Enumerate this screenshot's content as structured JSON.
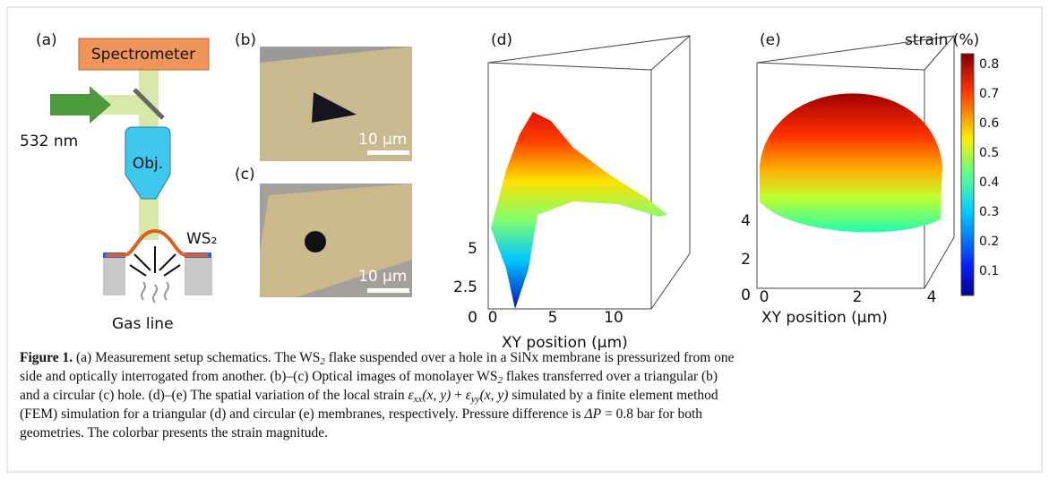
{
  "panels": {
    "a": {
      "label": "(a)",
      "spectrometer": "Spectrometer",
      "laser": "532 nm",
      "objective": "Obj.",
      "flake": "WS₂",
      "gas": "Gas line"
    },
    "b": {
      "label": "(b)",
      "scale_bar": "10 μm"
    },
    "c": {
      "label": "(c)",
      "scale_bar": "10 μm"
    },
    "d": {
      "label": "(d)",
      "z_ticks": [
        "5",
        "2.5",
        "0"
      ],
      "x_ticks": [
        "0",
        "5",
        "10"
      ],
      "x_label": "XY position (μm)"
    },
    "e": {
      "label": "(e)",
      "z_ticks": [
        "4",
        "2",
        "0"
      ],
      "x_ticks": [
        "0",
        "2",
        "4"
      ],
      "x_label": "XY position (μm)",
      "colorbar_title": "strain (%)",
      "colorbar_ticks": [
        "0.8",
        "0.7",
        "0.6",
        "0.5",
        "0.4",
        "0.3",
        "0.2",
        "0.1"
      ]
    }
  },
  "caption": {
    "lines": [
      [
        {
          "text": "Figure 1.",
          "style": "b"
        },
        {
          "text": " (a) Measurement setup schematics. The WS"
        },
        {
          "text": "2",
          "style": "sub"
        },
        {
          "text": " flake suspended over a hole in a SiNx membrane is pressurized from one"
        }
      ],
      [
        {
          "text": "side and optically interrogated from another. (b)–(c) Optical images of monolayer WS"
        },
        {
          "text": "2",
          "style": "sub"
        },
        {
          "text": " flakes transferred over a triangular (b)"
        }
      ],
      [
        {
          "text": "and a circular (c) hole. (d)–(e) The spatial variation of the local strain "
        },
        {
          "text": "ε",
          "style": "i"
        },
        {
          "text": "xx",
          "style": "sub"
        },
        {
          "text": "(x, y)",
          "style": "i"
        },
        {
          "text": " + "
        },
        {
          "text": "ε",
          "style": "i"
        },
        {
          "text": "yy",
          "style": "sub"
        },
        {
          "text": "(x, y)",
          "style": "i"
        },
        {
          "text": " simulated by a finite element method"
        }
      ],
      [
        {
          "text": "(FEM) simulation for a triangular (d) and circular (e) membranes, respectively. Pressure difference is "
        },
        {
          "text": "ΔP",
          "style": "i"
        },
        {
          "text": " = 0.8 bar for both"
        }
      ],
      [
        {
          "text": "geometries. The colorbar presents the strain magnitude."
        }
      ]
    ]
  }
}
